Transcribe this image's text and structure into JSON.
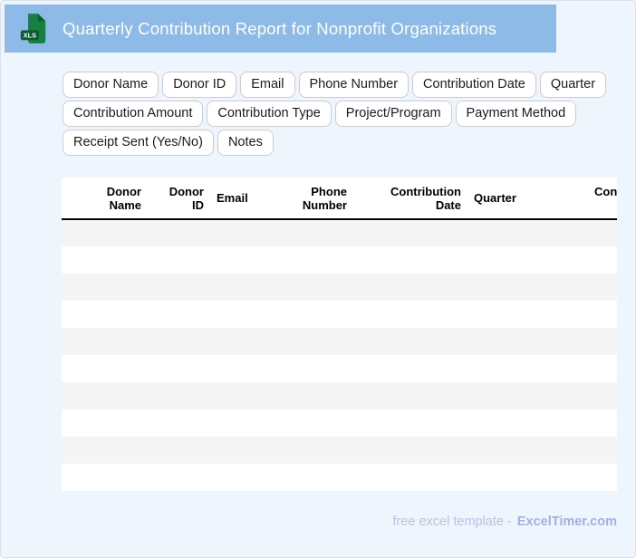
{
  "header": {
    "title": "Quarterly Contribution Report for Nonprofit Organizations",
    "icon_label": "XLS"
  },
  "chips": {
    "rows": [
      [
        "Donor Name",
        "Donor ID",
        "Email",
        "Phone Number",
        "Contribution Date",
        "Quarter"
      ],
      [
        "Contribution Amount",
        "Contribution Type",
        "Project/Program",
        "Payment Method"
      ],
      [
        "Receipt Sent (Yes/No)",
        "Notes"
      ]
    ]
  },
  "table": {
    "columns": [
      {
        "label": "Donor\nName",
        "align": "right"
      },
      {
        "label": "Donor\nID",
        "align": "right"
      },
      {
        "label": "Email",
        "align": "left"
      },
      {
        "label": "Phone\nNumber",
        "align": "right"
      },
      {
        "label": "Contribution\nDate",
        "align": "right"
      },
      {
        "label": "Quarter",
        "align": "left"
      },
      {
        "label": "Contribution\nAmount",
        "align": "right"
      }
    ],
    "empty_row_count": 10
  },
  "footer": {
    "text": "free excel template -",
    "brand": "ExcelTimer.com"
  },
  "colors": {
    "banner_blue": "#8dbae6",
    "page_bg": "#eef5fd",
    "page_border": "#dbe1ec",
    "icon_green": "#15803f",
    "icon_green_dark": "#0d5c31",
    "chip_border": "#cccccc",
    "stripe_gray": "#f5f5f5",
    "table_header_border": "#000000",
    "footer_text": "#b8c3e2",
    "footer_brand": "#a0b1e2"
  }
}
